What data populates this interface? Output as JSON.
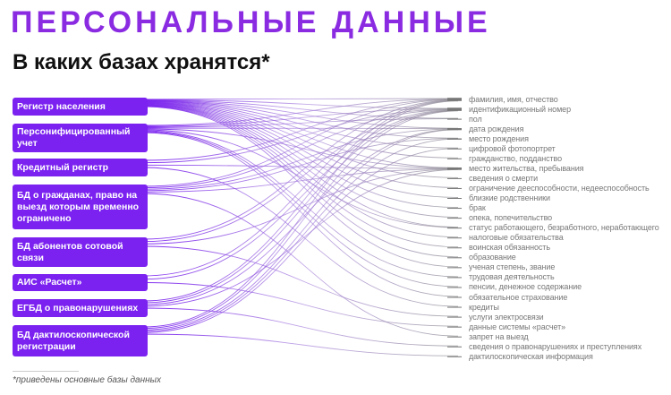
{
  "title": "ПЕРСОНАЛЬНЫЕ ДАННЫЕ",
  "subtitle": "В каких базах хранятся*",
  "footnote": "*приведены основные базы данных",
  "colors": {
    "accent": "#7b22f0",
    "title": "#8a2be2",
    "target_text": "#777777"
  },
  "sources": [
    "Регистр населения",
    "Персонифицированный учет",
    "Кредитный регистр",
    "БД о гражданах, право на выезд которым временно ограничено",
    "БД абонентов сотовой связи",
    "АИС «Расчет»",
    "ЕГБД о правонарушениях",
    "БД дактилоскопической регистрации"
  ],
  "targets": [
    "фамилия, имя, отчество",
    "идентификационный номер",
    "пол",
    "дата рождения",
    "место рождения",
    "цифровой фотопортрет",
    "гражданство, подданство",
    "место жительства, пребывания",
    "сведения о смерти",
    "ограничение дееспособности, недееспособность",
    "близкие родственники",
    "брак",
    "опека, попечительство",
    "статус работающего, безработного, неработающего",
    "налоговые обязательства",
    "воинская обязанность",
    "образование",
    "ученая степень, звание",
    "трудовая деятельность",
    "пенсии, денежное содержание",
    "обязательное страхование",
    "кредиты",
    "услуги электросвязи",
    "данные системы «расчет»",
    "запрет на выезд",
    "сведения о правонарушениях и преступлениях",
    "дактилоскопическая информация"
  ],
  "links": [
    {
      "source": 0,
      "targets": [
        0,
        1,
        2,
        3,
        4,
        5,
        6,
        7,
        8,
        9,
        10,
        11,
        12,
        13,
        14,
        15,
        16,
        17
      ]
    },
    {
      "source": 1,
      "targets": [
        0,
        1,
        2,
        3,
        7,
        13,
        18,
        19,
        20
      ]
    },
    {
      "source": 2,
      "targets": [
        0,
        1,
        7,
        21
      ]
    },
    {
      "source": 3,
      "targets": [
        0,
        1,
        3,
        4,
        7,
        24
      ]
    },
    {
      "source": 4,
      "targets": [
        0,
        1,
        7,
        22
      ]
    },
    {
      "source": 5,
      "targets": [
        0,
        1,
        23
      ]
    },
    {
      "source": 6,
      "targets": [
        0,
        1,
        3,
        7,
        25
      ]
    },
    {
      "source": 7,
      "targets": [
        0,
        1,
        3,
        4,
        5,
        26
      ]
    }
  ]
}
